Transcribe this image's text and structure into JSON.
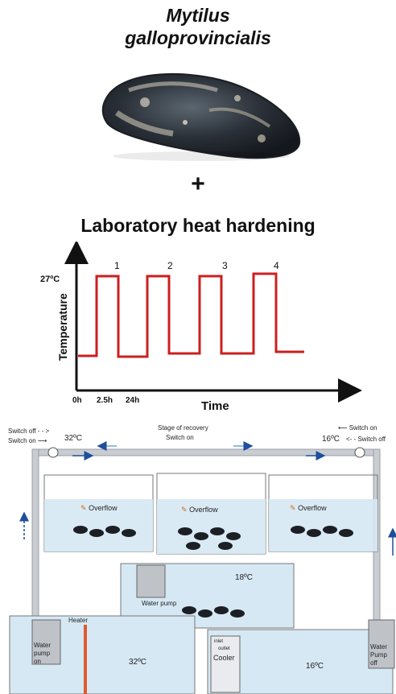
{
  "header": {
    "species_line1": "Mytilus",
    "species_line2": "galloprovincialis",
    "plus": "+",
    "section_title": "Laboratory heat hardening"
  },
  "chart_data": {
    "type": "line",
    "xlabel": "Time",
    "ylabel": "Temperature",
    "y_tick_label": "27ºC",
    "x_tick_labels": [
      "0h",
      "2.5h",
      "24h"
    ],
    "pulse_labels": [
      "1",
      "2",
      "3",
      "4"
    ],
    "series": [
      {
        "values_description": "square wave",
        "color": "#cc1f1f"
      }
    ]
  },
  "system": {
    "switch_off_left": "Switch off",
    "switch_on_left": "Switch on",
    "temp_32_top": "32ºC",
    "recovery_line1": "Stage of recovery",
    "recovery_line2": "Switch on",
    "switch_on_right": "Switch on",
    "switch_off_right": "Switch off",
    "temp_16_top": "16ºC",
    "overflow": "Overflow",
    "temp_18": "18ºC",
    "water_pump": "Water pump",
    "heater": "Heater",
    "water_pump_on_line1": "Water",
    "water_pump_on_line2": "pump",
    "water_pump_on_line3": "on",
    "temp_32_tank": "32ºC",
    "cooler": "Cooler",
    "inlet": "inlet",
    "outlet": "outlet",
    "temp_16_tank": "16ºC",
    "water_pump_off_line1": "Water",
    "water_pump_off_line2": "Pump",
    "water_pump_off_line3": "off"
  },
  "colors": {
    "signal": "#cc1f1f",
    "water": "#d6e8f4",
    "pipe": "#c9cdd2",
    "arrow": "#1f4e9a"
  }
}
